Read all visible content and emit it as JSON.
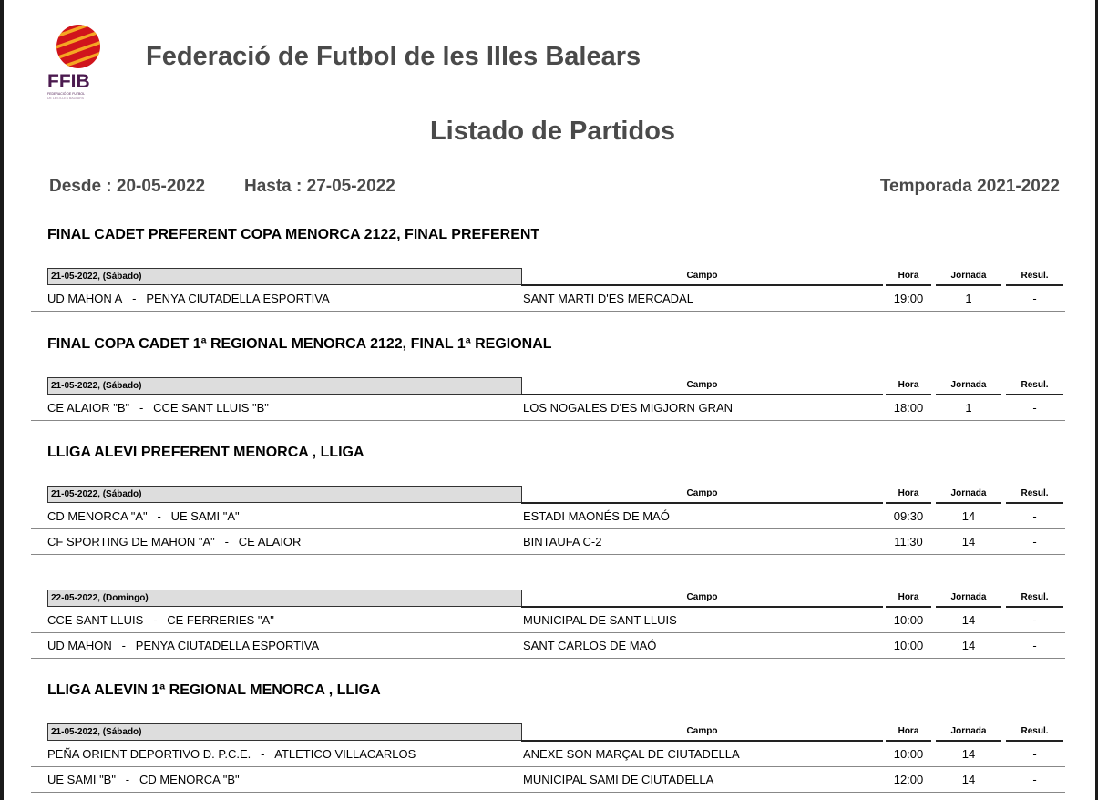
{
  "header": {
    "org": "Federació de Futbol de les Illes Balears",
    "logo_text": "FFIB",
    "logo_sub": "FEDERACIÓ DE FUTBOL DE LES ILLES BALEARS",
    "title": "Listado de Partidos",
    "desde": "Desde :  20-05-2022",
    "hasta": "Hasta :  27-05-2022",
    "temporada": "Temporada 2021-2022"
  },
  "columns": {
    "campo": "Campo",
    "hora": "Hora",
    "jornada": "Jornada",
    "resul": "Resul."
  },
  "sections": [
    {
      "title": "FINAL CADET PREFERENT COPA MENORCA 2122, FINAL PREFERENT",
      "groups": [
        {
          "date": "21-05-2022,  (Sábado)",
          "rows": [
            {
              "home": "UD MAHON A",
              "away": "PENYA CIUTADELLA ESPORTIVA",
              "campo": "SANT MARTI D'ES MERCADAL",
              "hora": "19:00",
              "jornada": "1",
              "resul": "-"
            }
          ]
        }
      ]
    },
    {
      "title": "FINAL COPA CADET 1ª REGIONAL MENORCA 2122, FINAL 1ª REGIONAL",
      "groups": [
        {
          "date": "21-05-2022,  (Sábado)",
          "rows": [
            {
              "home": "CE ALAIOR \"B\"",
              "away": "CCE SANT LLUIS \"B\"",
              "campo": "LOS NOGALES D'ES MIGJORN GRAN",
              "hora": "18:00",
              "jornada": "1",
              "resul": "-"
            }
          ]
        }
      ]
    },
    {
      "title": "LLIGA ALEVI PREFERENT MENORCA , LLIGA",
      "groups": [
        {
          "date": "21-05-2022,  (Sábado)",
          "rows": [
            {
              "home": "CD MENORCA \"A\"",
              "away": "UE SAMI \"A\"",
              "campo": "ESTADI MAONÉS DE MAÓ",
              "hora": "09:30",
              "jornada": "14",
              "resul": "-"
            },
            {
              "home": "CF SPORTING DE MAHON \"A\"",
              "away": "CE ALAIOR",
              "campo": "BINTAUFA C-2",
              "hora": "11:30",
              "jornada": "14",
              "resul": "-"
            }
          ]
        },
        {
          "date": "22-05-2022,  (Domingo)",
          "rows": [
            {
              "home": "CCE SANT LLUIS",
              "away": "CE FERRERIES \"A\"",
              "campo": "MUNICIPAL DE SANT LLUIS",
              "hora": "10:00",
              "jornada": "14",
              "resul": "-"
            },
            {
              "home": "UD MAHON",
              "away": "PENYA CIUTADELLA ESPORTIVA",
              "campo": "SANT CARLOS DE MAÓ",
              "hora": "10:00",
              "jornada": "14",
              "resul": "-"
            }
          ]
        }
      ]
    },
    {
      "title": "LLIGA ALEVIN 1ª REGIONAL MENORCA , LLIGA",
      "groups": [
        {
          "date": "21-05-2022,  (Sábado)",
          "rows": [
            {
              "home": "PEÑA ORIENT DEPORTIVO D. P.C.E.",
              "away": "ATLETICO VILLACARLOS",
              "campo": "ANEXE SON MARÇAL DE CIUTADELLA",
              "hora": "10:00",
              "jornada": "14",
              "resul": "-"
            },
            {
              "home": "UE SAMI \"B\"",
              "away": "CD MENORCA \"B\"",
              "campo": "MUNICIPAL SAMI DE CIUTADELLA",
              "hora": "12:00",
              "jornada": "14",
              "resul": "-"
            }
          ]
        }
      ]
    }
  ]
}
